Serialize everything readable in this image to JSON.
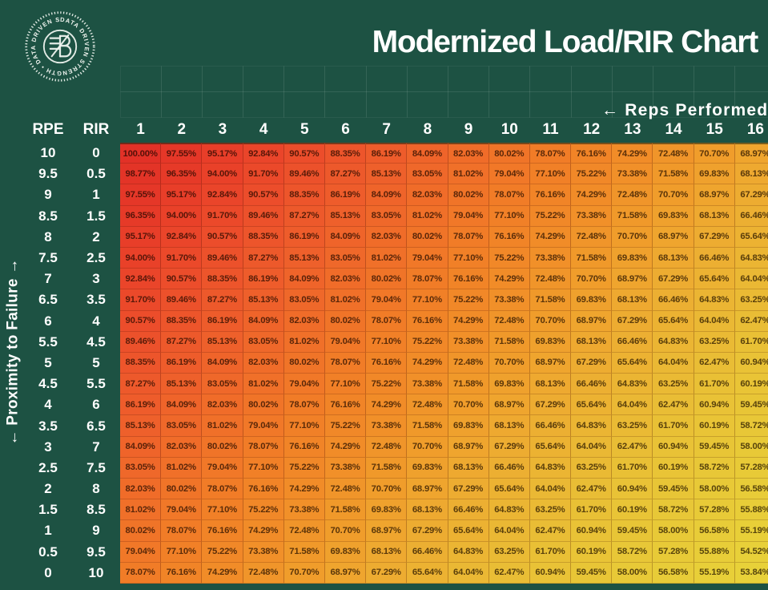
{
  "title": "Modernized Load/RIR Chart",
  "reps_performed_label": "← Reps Performed",
  "proximity_label": "← Proximity to Failure →",
  "logo": {
    "icon": "data-driven-strength-stamp",
    "ring_text": "DATA DRIVEN STRENGTH • DATA DRIVEN STRENGTH •"
  },
  "theme": {
    "background": "#1d5243",
    "header_text": "#ffffff",
    "color_scale": [
      {
        "value": 54,
        "color": "#e8d139"
      },
      {
        "value": 58,
        "color": "#e8c937"
      },
      {
        "value": 62,
        "color": "#e9bf35"
      },
      {
        "value": 65,
        "color": "#ebb433"
      },
      {
        "value": 68,
        "color": "#eeaa30"
      },
      {
        "value": 71,
        "color": "#f09c2b"
      },
      {
        "value": 74,
        "color": "#f18d28"
      },
      {
        "value": 78,
        "color": "#f17c27"
      },
      {
        "value": 82,
        "color": "#f06c29"
      },
      {
        "value": 86,
        "color": "#ee5d2b"
      },
      {
        "value": 90,
        "color": "#ec4f2b"
      },
      {
        "value": 95,
        "color": "#e83e29"
      },
      {
        "value": 100,
        "color": "#e23127"
      }
    ]
  },
  "chart_data": {
    "type": "heatmap",
    "title": "Modernized Load/RIR Chart",
    "corner_headers": [
      "RPE",
      "RIR"
    ],
    "column_headers": [
      "1",
      "2",
      "3",
      "4",
      "5",
      "6",
      "7",
      "8",
      "9",
      "10",
      "11",
      "12",
      "13",
      "14",
      "15",
      "16"
    ],
    "rows": [
      {
        "rpe": "10",
        "rir": "0",
        "values": [
          "100.00%",
          "97.55%",
          "95.17%",
          "92.84%",
          "90.57%",
          "88.35%",
          "86.19%",
          "84.09%",
          "82.03%",
          "80.02%",
          "78.07%",
          "76.16%",
          "74.29%",
          "72.48%",
          "70.70%",
          "68.97%"
        ]
      },
      {
        "rpe": "9.5",
        "rir": "0.5",
        "values": [
          "98.77%",
          "96.35%",
          "94.00%",
          "91.70%",
          "89.46%",
          "87.27%",
          "85.13%",
          "83.05%",
          "81.02%",
          "79.04%",
          "77.10%",
          "75.22%",
          "73.38%",
          "71.58%",
          "69.83%",
          "68.13%"
        ]
      },
      {
        "rpe": "9",
        "rir": "1",
        "values": [
          "97.55%",
          "95.17%",
          "92.84%",
          "90.57%",
          "88.35%",
          "86.19%",
          "84.09%",
          "82.03%",
          "80.02%",
          "78.07%",
          "76.16%",
          "74.29%",
          "72.48%",
          "70.70%",
          "68.97%",
          "67.29%"
        ]
      },
      {
        "rpe": "8.5",
        "rir": "1.5",
        "values": [
          "96.35%",
          "94.00%",
          "91.70%",
          "89.46%",
          "87.27%",
          "85.13%",
          "83.05%",
          "81.02%",
          "79.04%",
          "77.10%",
          "75.22%",
          "73.38%",
          "71.58%",
          "69.83%",
          "68.13%",
          "66.46%"
        ]
      },
      {
        "rpe": "8",
        "rir": "2",
        "values": [
          "95.17%",
          "92.84%",
          "90.57%",
          "88.35%",
          "86.19%",
          "84.09%",
          "82.03%",
          "80.02%",
          "78.07%",
          "76.16%",
          "74.29%",
          "72.48%",
          "70.70%",
          "68.97%",
          "67.29%",
          "65.64%"
        ]
      },
      {
        "rpe": "7.5",
        "rir": "2.5",
        "values": [
          "94.00%",
          "91.70%",
          "89.46%",
          "87.27%",
          "85.13%",
          "83.05%",
          "81.02%",
          "79.04%",
          "77.10%",
          "75.22%",
          "73.38%",
          "71.58%",
          "69.83%",
          "68.13%",
          "66.46%",
          "64.83%"
        ]
      },
      {
        "rpe": "7",
        "rir": "3",
        "values": [
          "92.84%",
          "90.57%",
          "88.35%",
          "86.19%",
          "84.09%",
          "82.03%",
          "80.02%",
          "78.07%",
          "76.16%",
          "74.29%",
          "72.48%",
          "70.70%",
          "68.97%",
          "67.29%",
          "65.64%",
          "64.04%"
        ]
      },
      {
        "rpe": "6.5",
        "rir": "3.5",
        "values": [
          "91.70%",
          "89.46%",
          "87.27%",
          "85.13%",
          "83.05%",
          "81.02%",
          "79.04%",
          "77.10%",
          "75.22%",
          "73.38%",
          "71.58%",
          "69.83%",
          "68.13%",
          "66.46%",
          "64.83%",
          "63.25%"
        ]
      },
      {
        "rpe": "6",
        "rir": "4",
        "values": [
          "90.57%",
          "88.35%",
          "86.19%",
          "84.09%",
          "82.03%",
          "80.02%",
          "78.07%",
          "76.16%",
          "74.29%",
          "72.48%",
          "70.70%",
          "68.97%",
          "67.29%",
          "65.64%",
          "64.04%",
          "62.47%"
        ]
      },
      {
        "rpe": "5.5",
        "rir": "4.5",
        "values": [
          "89.46%",
          "87.27%",
          "85.13%",
          "83.05%",
          "81.02%",
          "79.04%",
          "77.10%",
          "75.22%",
          "73.38%",
          "71.58%",
          "69.83%",
          "68.13%",
          "66.46%",
          "64.83%",
          "63.25%",
          "61.70%"
        ]
      },
      {
        "rpe": "5",
        "rir": "5",
        "values": [
          "88.35%",
          "86.19%",
          "84.09%",
          "82.03%",
          "80.02%",
          "78.07%",
          "76.16%",
          "74.29%",
          "72.48%",
          "70.70%",
          "68.97%",
          "67.29%",
          "65.64%",
          "64.04%",
          "62.47%",
          "60.94%"
        ]
      },
      {
        "rpe": "4.5",
        "rir": "5.5",
        "values": [
          "87.27%",
          "85.13%",
          "83.05%",
          "81.02%",
          "79.04%",
          "77.10%",
          "75.22%",
          "73.38%",
          "71.58%",
          "69.83%",
          "68.13%",
          "66.46%",
          "64.83%",
          "63.25%",
          "61.70%",
          "60.19%"
        ]
      },
      {
        "rpe": "4",
        "rir": "6",
        "values": [
          "86.19%",
          "84.09%",
          "82.03%",
          "80.02%",
          "78.07%",
          "76.16%",
          "74.29%",
          "72.48%",
          "70.70%",
          "68.97%",
          "67.29%",
          "65.64%",
          "64.04%",
          "62.47%",
          "60.94%",
          "59.45%"
        ]
      },
      {
        "rpe": "3.5",
        "rir": "6.5",
        "values": [
          "85.13%",
          "83.05%",
          "81.02%",
          "79.04%",
          "77.10%",
          "75.22%",
          "73.38%",
          "71.58%",
          "69.83%",
          "68.13%",
          "66.46%",
          "64.83%",
          "63.25%",
          "61.70%",
          "60.19%",
          "58.72%"
        ]
      },
      {
        "rpe": "3",
        "rir": "7",
        "values": [
          "84.09%",
          "82.03%",
          "80.02%",
          "78.07%",
          "76.16%",
          "74.29%",
          "72.48%",
          "70.70%",
          "68.97%",
          "67.29%",
          "65.64%",
          "64.04%",
          "62.47%",
          "60.94%",
          "59.45%",
          "58.00%"
        ]
      },
      {
        "rpe": "2.5",
        "rir": "7.5",
        "values": [
          "83.05%",
          "81.02%",
          "79.04%",
          "77.10%",
          "75.22%",
          "73.38%",
          "71.58%",
          "69.83%",
          "68.13%",
          "66.46%",
          "64.83%",
          "63.25%",
          "61.70%",
          "60.19%",
          "58.72%",
          "57.28%"
        ]
      },
      {
        "rpe": "2",
        "rir": "8",
        "values": [
          "82.03%",
          "80.02%",
          "78.07%",
          "76.16%",
          "74.29%",
          "72.48%",
          "70.70%",
          "68.97%",
          "67.29%",
          "65.64%",
          "64.04%",
          "62.47%",
          "60.94%",
          "59.45%",
          "58.00%",
          "56.58%"
        ]
      },
      {
        "rpe": "1.5",
        "rir": "8.5",
        "values": [
          "81.02%",
          "79.04%",
          "77.10%",
          "75.22%",
          "73.38%",
          "71.58%",
          "69.83%",
          "68.13%",
          "66.46%",
          "64.83%",
          "63.25%",
          "61.70%",
          "60.19%",
          "58.72%",
          "57.28%",
          "55.88%"
        ]
      },
      {
        "rpe": "1",
        "rir": "9",
        "values": [
          "80.02%",
          "78.07%",
          "76.16%",
          "74.29%",
          "72.48%",
          "70.70%",
          "68.97%",
          "67.29%",
          "65.64%",
          "64.04%",
          "62.47%",
          "60.94%",
          "59.45%",
          "58.00%",
          "56.58%",
          "55.19%"
        ]
      },
      {
        "rpe": "0.5",
        "rir": "9.5",
        "values": [
          "79.04%",
          "77.10%",
          "75.22%",
          "73.38%",
          "71.58%",
          "69.83%",
          "68.13%",
          "66.46%",
          "64.83%",
          "63.25%",
          "61.70%",
          "60.19%",
          "58.72%",
          "57.28%",
          "55.88%",
          "54.52%"
        ]
      },
      {
        "rpe": "0",
        "rir": "10",
        "values": [
          "78.07%",
          "76.16%",
          "74.29%",
          "72.48%",
          "70.70%",
          "68.97%",
          "67.29%",
          "65.64%",
          "64.04%",
          "62.47%",
          "60.94%",
          "59.45%",
          "58.00%",
          "56.58%",
          "55.19%",
          "53.84%"
        ]
      }
    ]
  }
}
